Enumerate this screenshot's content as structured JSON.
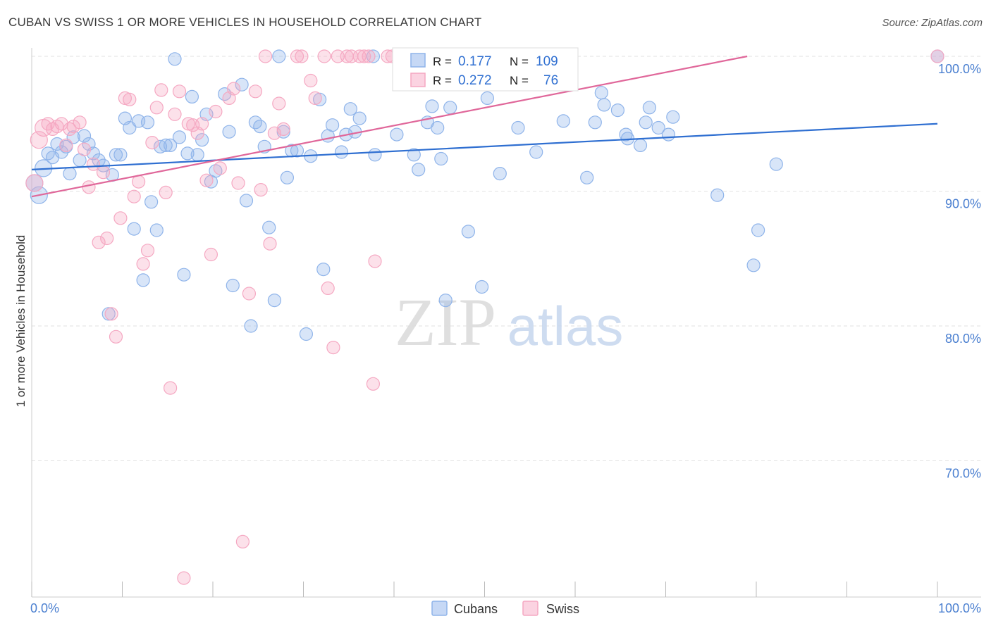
{
  "header": {
    "title": "CUBAN VS SWISS 1 OR MORE VEHICLES IN HOUSEHOLD CORRELATION CHART",
    "source": "Source: ZipAtlas.com"
  },
  "watermark": {
    "zip": "ZIP",
    "atlas": "atlas"
  },
  "stats_legend": [
    {
      "r_label": "R =",
      "r_value": "0.177",
      "n_label": "N =",
      "n_value": "109",
      "color": "#8fb4ea"
    },
    {
      "r_label": "R =",
      "r_value": "0.272",
      "n_label": "N =",
      "n_value": "76",
      "color": "#f5a8c2"
    }
  ],
  "bottom_legend": [
    {
      "label": "Cubans",
      "color": "#8fb4ea"
    },
    {
      "label": "Swiss",
      "color": "#f5a8c2"
    }
  ],
  "chart_data": {
    "type": "scatter",
    "title": "CUBAN VS SWISS 1 OR MORE VEHICLES IN HOUSEHOLD CORRELATION CHART",
    "xlabel": "",
    "ylabel": "1 or more Vehicles in Household",
    "xlim": [
      0,
      100
    ],
    "ylim": [
      60.8,
      101.5
    ],
    "x_ticks_labels": [
      "0.0%",
      "100.0%"
    ],
    "y_ticks": [
      70,
      80,
      90,
      100
    ],
    "y_tick_labels": [
      "70.0%",
      "80.0%",
      "90.0%",
      "100.0%"
    ],
    "grid": "horizontal dashed",
    "series": [
      {
        "name": "Cubans",
        "color": "#8fb4ea",
        "line_color": "#2f6fd1",
        "trend": {
          "x": [
            0,
            100
          ],
          "y": [
            91.6,
            95.0
          ]
        },
        "points": [
          [
            0.3,
            90.6
          ],
          [
            0.8,
            89.7
          ],
          [
            1.3,
            91.7
          ],
          [
            1.8,
            92.8
          ],
          [
            2.3,
            92.5
          ],
          [
            2.8,
            93.5
          ],
          [
            3.3,
            92.9
          ],
          [
            3.8,
            93.3
          ],
          [
            4.2,
            91.3
          ],
          [
            4.6,
            94.0
          ],
          [
            5.3,
            92.3
          ],
          [
            5.8,
            94.1
          ],
          [
            6.3,
            93.5
          ],
          [
            6.8,
            92.8
          ],
          [
            7.4,
            92.3
          ],
          [
            7.9,
            91.9
          ],
          [
            8.5,
            80.9
          ],
          [
            8.9,
            91.2
          ],
          [
            9.3,
            92.7
          ],
          [
            9.8,
            92.7
          ],
          [
            10.3,
            95.4
          ],
          [
            10.8,
            94.7
          ],
          [
            11.3,
            87.2
          ],
          [
            11.8,
            95.2
          ],
          [
            12.3,
            83.4
          ],
          [
            12.8,
            95.1
          ],
          [
            13.2,
            89.2
          ],
          [
            13.8,
            87.1
          ],
          [
            14.2,
            93.3
          ],
          [
            14.8,
            93.4
          ],
          [
            15.3,
            93.4
          ],
          [
            15.8,
            99.8
          ],
          [
            16.3,
            94.0
          ],
          [
            16.8,
            83.8
          ],
          [
            17.2,
            92.8
          ],
          [
            17.7,
            97.0
          ],
          [
            18.3,
            92.7
          ],
          [
            18.8,
            93.8
          ],
          [
            19.3,
            95.7
          ],
          [
            19.8,
            90.7
          ],
          [
            20.3,
            91.5
          ],
          [
            21.3,
            97.2
          ],
          [
            21.8,
            94.4
          ],
          [
            22.2,
            83.0
          ],
          [
            23.2,
            97.9
          ],
          [
            23.7,
            89.3
          ],
          [
            24.2,
            80.0
          ],
          [
            24.7,
            95.1
          ],
          [
            25.2,
            94.8
          ],
          [
            25.7,
            93.3
          ],
          [
            26.2,
            87.3
          ],
          [
            26.8,
            81.9
          ],
          [
            27.3,
            100.0
          ],
          [
            27.8,
            94.4
          ],
          [
            28.2,
            91.0
          ],
          [
            28.7,
            93.0
          ],
          [
            29.3,
            93.0
          ],
          [
            30.3,
            79.4
          ],
          [
            30.8,
            92.6
          ],
          [
            31.8,
            96.8
          ],
          [
            32.2,
            84.2
          ],
          [
            32.7,
            94.1
          ],
          [
            33.2,
            94.9
          ],
          [
            34.2,
            92.9
          ],
          [
            34.7,
            94.2
          ],
          [
            35.2,
            96.1
          ],
          [
            35.7,
            94.4
          ],
          [
            36.2,
            95.4
          ],
          [
            37.7,
            100.0
          ],
          [
            37.9,
            92.7
          ],
          [
            40.3,
            94.2
          ],
          [
            42.2,
            92.7
          ],
          [
            42.7,
            91.6
          ],
          [
            43.7,
            95.1
          ],
          [
            44.2,
            96.3
          ],
          [
            44.8,
            94.7
          ],
          [
            45.2,
            92.4
          ],
          [
            45.7,
            81.9
          ],
          [
            46.2,
            96.2
          ],
          [
            48.2,
            87.0
          ],
          [
            49.7,
            82.9
          ],
          [
            50.3,
            96.9
          ],
          [
            51.7,
            91.3
          ],
          [
            53.7,
            94.7
          ],
          [
            54.2,
            99.8
          ],
          [
            55.2,
            98.1
          ],
          [
            55.7,
            92.9
          ],
          [
            58.7,
            95.2
          ],
          [
            61.3,
            91.0
          ],
          [
            62.2,
            95.1
          ],
          [
            62.9,
            97.3
          ],
          [
            63.2,
            96.4
          ],
          [
            64.7,
            96.0
          ],
          [
            65.6,
            94.2
          ],
          [
            65.8,
            93.9
          ],
          [
            67.2,
            93.4
          ],
          [
            67.8,
            95.1
          ],
          [
            68.2,
            96.2
          ],
          [
            69.2,
            94.7
          ],
          [
            70.3,
            94.2
          ],
          [
            70.8,
            95.5
          ],
          [
            75.7,
            89.7
          ],
          [
            79.7,
            84.5
          ],
          [
            80.2,
            87.1
          ],
          [
            82.2,
            92.0
          ],
          [
            100.0,
            100.0
          ]
        ]
      },
      {
        "name": "Swiss",
        "color": "#f5a8c2",
        "line_color": "#e0679a",
        "trend": {
          "x": [
            0,
            79
          ],
          "y": [
            89.6,
            100.0
          ]
        },
        "points": [
          [
            0.3,
            90.6
          ],
          [
            0.8,
            93.8
          ],
          [
            1.3,
            94.7
          ],
          [
            1.8,
            95.0
          ],
          [
            2.3,
            94.6
          ],
          [
            2.8,
            94.8
          ],
          [
            3.3,
            95.0
          ],
          [
            3.8,
            93.4
          ],
          [
            4.2,
            94.6
          ],
          [
            4.6,
            94.8
          ],
          [
            5.3,
            95.1
          ],
          [
            5.8,
            93.1
          ],
          [
            6.3,
            90.3
          ],
          [
            6.8,
            92.0
          ],
          [
            7.4,
            86.2
          ],
          [
            7.9,
            91.4
          ],
          [
            8.3,
            86.5
          ],
          [
            8.8,
            80.9
          ],
          [
            9.3,
            79.2
          ],
          [
            9.8,
            88.0
          ],
          [
            10.3,
            96.9
          ],
          [
            10.8,
            96.8
          ],
          [
            11.3,
            89.6
          ],
          [
            11.8,
            90.7
          ],
          [
            12.3,
            84.6
          ],
          [
            12.8,
            85.6
          ],
          [
            13.3,
            93.6
          ],
          [
            13.8,
            96.2
          ],
          [
            14.3,
            97.5
          ],
          [
            14.8,
            89.9
          ],
          [
            15.3,
            75.4
          ],
          [
            15.8,
            95.7
          ],
          [
            16.3,
            97.4
          ],
          [
            16.8,
            61.3
          ],
          [
            17.3,
            95.0
          ],
          [
            17.8,
            94.9
          ],
          [
            18.3,
            94.3
          ],
          [
            18.8,
            95.0
          ],
          [
            19.3,
            90.8
          ],
          [
            19.8,
            85.3
          ],
          [
            20.3,
            95.9
          ],
          [
            20.8,
            91.7
          ],
          [
            21.8,
            96.9
          ],
          [
            22.3,
            97.6
          ],
          [
            22.8,
            90.6
          ],
          [
            23.3,
            64.0
          ],
          [
            24.0,
            82.4
          ],
          [
            24.7,
            97.4
          ],
          [
            25.3,
            90.1
          ],
          [
            25.8,
            100.0
          ],
          [
            26.3,
            86.1
          ],
          [
            26.8,
            94.3
          ],
          [
            27.3,
            96.5
          ],
          [
            27.8,
            94.6
          ],
          [
            29.3,
            100.0
          ],
          [
            29.8,
            100.0
          ],
          [
            30.8,
            98.2
          ],
          [
            31.3,
            96.9
          ],
          [
            32.3,
            100.0
          ],
          [
            32.7,
            82.8
          ],
          [
            33.3,
            78.4
          ],
          [
            33.8,
            100.0
          ],
          [
            34.8,
            100.0
          ],
          [
            35.3,
            100.0
          ],
          [
            36.2,
            100.0
          ],
          [
            36.7,
            100.0
          ],
          [
            37.2,
            100.0
          ],
          [
            37.7,
            75.7
          ],
          [
            37.9,
            84.8
          ],
          [
            39.3,
            100.0
          ],
          [
            39.8,
            100.0
          ],
          [
            40.8,
            100.0
          ],
          [
            52.7,
            98.0
          ],
          [
            53.2,
            100.0
          ],
          [
            54.2,
            100.0
          ],
          [
            100.0,
            100.0
          ]
        ]
      }
    ]
  }
}
